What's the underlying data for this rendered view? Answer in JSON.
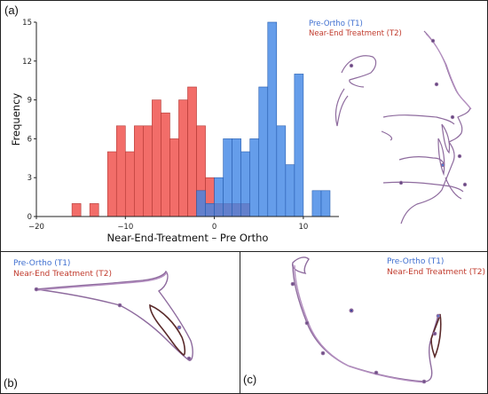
{
  "panels": {
    "a": "(a)",
    "b": "(b)",
    "c": "(c)"
  },
  "colors": {
    "t1": "#3f84e5",
    "t2": "#f0544f",
    "t1_text": "#3f6fd0",
    "t2_text": "#c0392b",
    "tracing": "#8e6b9e"
  },
  "legend_b": {
    "t1": "Pre-Ortho (T1)",
    "t2": "Near-End Treatment (T2)"
  },
  "legend_c": {
    "t1": "Pre-Ortho (T1)",
    "t2": "Near-End Treatment (T2)"
  },
  "chart_data": {
    "type": "bar",
    "subtype": "histogram",
    "xlabel": "Near-End-Treatment – Pre Ortho",
    "ylabel": "Frequency",
    "xlim": [
      -20,
      14
    ],
    "ylim": [
      0,
      15
    ],
    "xticks": [
      -20,
      -10,
      0,
      10
    ],
    "yticks": [
      0,
      3,
      6,
      9,
      12,
      15
    ],
    "legend_position": "top-right",
    "grid": false,
    "series": [
      {
        "name": "Pre-Ortho (T1)",
        "color": "#3f84e5",
        "bins": [
          {
            "x0": -2,
            "x1": -1,
            "count": 2
          },
          {
            "x0": -1,
            "x1": 0,
            "count": 1
          },
          {
            "x0": 0,
            "x1": 1,
            "count": 3
          },
          {
            "x0": 1,
            "x1": 2,
            "count": 6
          },
          {
            "x0": 2,
            "x1": 3,
            "count": 6
          },
          {
            "x0": 3,
            "x1": 4,
            "count": 5
          },
          {
            "x0": 4,
            "x1": 5,
            "count": 6
          },
          {
            "x0": 5,
            "x1": 6,
            "count": 10
          },
          {
            "x0": 6,
            "x1": 7,
            "count": 15
          },
          {
            "x0": 7,
            "x1": 8,
            "count": 7
          },
          {
            "x0": 8,
            "x1": 9,
            "count": 4
          },
          {
            "x0": 9,
            "x1": 10,
            "count": 11
          },
          {
            "x0": 10,
            "x1": 11,
            "count": 0
          },
          {
            "x0": 11,
            "x1": 12,
            "count": 2
          },
          {
            "x0": 12,
            "x1": 13,
            "count": 2
          }
        ]
      },
      {
        "name": "Near-End Treatment (T2)",
        "color": "#f0544f",
        "bins": [
          {
            "x0": -16,
            "x1": -15,
            "count": 1
          },
          {
            "x0": -15,
            "x1": -14,
            "count": 0
          },
          {
            "x0": -14,
            "x1": -13,
            "count": 1
          },
          {
            "x0": -13,
            "x1": -12,
            "count": 0
          },
          {
            "x0": -12,
            "x1": -11,
            "count": 5
          },
          {
            "x0": -11,
            "x1": -10,
            "count": 7
          },
          {
            "x0": -10,
            "x1": -9,
            "count": 5
          },
          {
            "x0": -9,
            "x1": -8,
            "count": 7
          },
          {
            "x0": -8,
            "x1": -7,
            "count": 7
          },
          {
            "x0": -7,
            "x1": -6,
            "count": 9
          },
          {
            "x0": -6,
            "x1": -5,
            "count": 8
          },
          {
            "x0": -5,
            "x1": -4,
            "count": 6
          },
          {
            "x0": -4,
            "x1": -3,
            "count": 9
          },
          {
            "x0": -3,
            "x1": -2,
            "count": 10
          },
          {
            "x0": -2,
            "x1": -1,
            "count": 7
          },
          {
            "x0": -1,
            "x1": 0,
            "count": 3
          },
          {
            "x0": 0,
            "x1": 1,
            "count": 1
          },
          {
            "x0": 1,
            "x1": 2,
            "count": 1
          },
          {
            "x0": 2,
            "x1": 3,
            "count": 1
          },
          {
            "x0": 3,
            "x1": 4,
            "count": 1
          }
        ]
      }
    ]
  }
}
